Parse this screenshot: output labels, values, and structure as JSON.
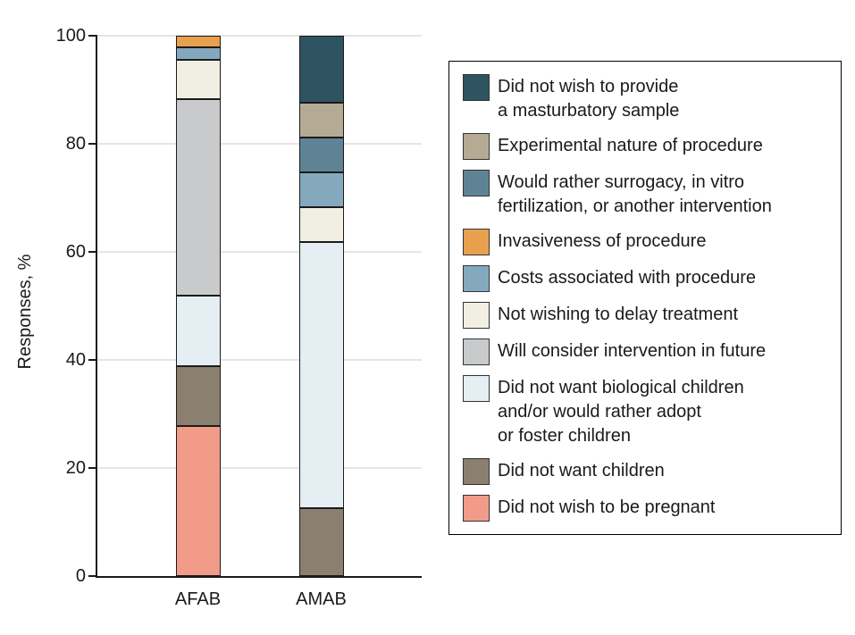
{
  "chart_data": {
    "type": "bar",
    "stacked": true,
    "orientation": "vertical",
    "categories": [
      "AFAB",
      "AMAB"
    ],
    "ylabel": "Responses, %",
    "ylim": [
      0,
      100
    ],
    "yticks": [
      0,
      20,
      40,
      60,
      80,
      100
    ],
    "grid": true,
    "legend_position": "right",
    "stack_order_note": "series listed top-of-stack first",
    "series": [
      {
        "name": "Did not wish to provide a masturbatory sample",
        "legend_lines": [
          "Did not wish to provide",
          "a masturbatory sample"
        ],
        "color": "#2F5461",
        "values": [
          0,
          12.5
        ]
      },
      {
        "name": "Experimental nature of procedure",
        "legend_lines": [
          "Experimental nature of procedure"
        ],
        "color": "#B5AB94",
        "values": [
          0,
          6.25
        ]
      },
      {
        "name": "Would rather surrogacy, in vitro fertilization, or another intervention",
        "legend_lines": [
          "Would rather surrogacy, in vitro",
          "fertilization, or another intervention"
        ],
        "color": "#5E8395",
        "values": [
          0,
          6.25
        ]
      },
      {
        "name": "Invasiveness of procedure",
        "legend_lines": [
          "Invasiveness of procedure"
        ],
        "color": "#E7A04E",
        "values": [
          2,
          0
        ]
      },
      {
        "name": "Costs associated with procedure",
        "legend_lines": [
          "Costs associated with procedure"
        ],
        "color": "#84A9BE",
        "values": [
          2,
          6.25
        ]
      },
      {
        "name": "Not wishing to delay treatment",
        "legend_lines": [
          "Not wishing to delay treatment"
        ],
        "color": "#F0EFE2",
        "values": [
          7,
          6.25
        ]
      },
      {
        "name": "Will consider intervention in future",
        "legend_lines": [
          "Will consider intervention in future"
        ],
        "color": "#C8CACC",
        "values": [
          37,
          0
        ]
      },
      {
        "name": "Did not want biological children and/or would rather adopt or foster children",
        "legend_lines": [
          "Did not want biological children",
          "and/or would rather adopt",
          "or foster children"
        ],
        "color": "#E5EEF3",
        "values": [
          13,
          50
        ]
      },
      {
        "name": "Did not want children",
        "legend_lines": [
          "Did not want children"
        ],
        "color": "#8B7F6F",
        "values": [
          11,
          12.5
        ]
      },
      {
        "name": "Did not wish to be pregnant",
        "legend_lines": [
          "Did not wish to be pregnant"
        ],
        "color": "#F29B88",
        "values": [
          28,
          0
        ]
      }
    ],
    "colors": {
      "axis": "#1A1A1A",
      "grid": "#E5E5E5",
      "segment_border": "#1B1B1B",
      "legend_border": "#000000"
    }
  }
}
